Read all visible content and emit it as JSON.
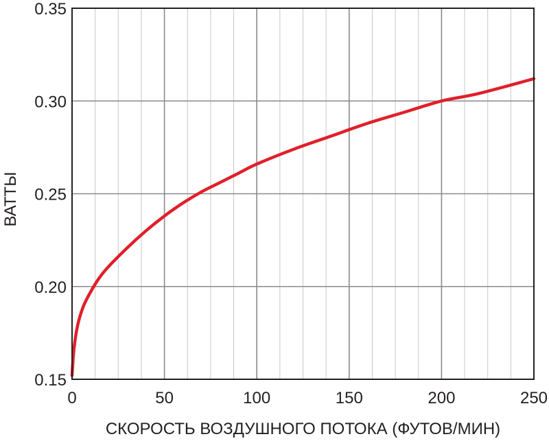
{
  "chart_data": {
    "type": "line",
    "title": "",
    "xlabel": "СКОРОСТЬ ВОЗДУШНОГО ПОТОКА (ФУТОВ/МИН)",
    "ylabel": "ВАТТЫ",
    "xlim": [
      0,
      250
    ],
    "ylim": [
      0.15,
      0.35
    ],
    "xticks": [
      0,
      50,
      100,
      150,
      200,
      250
    ],
    "xtick_labels": [
      "0",
      "50",
      "100",
      "150",
      "200",
      "250"
    ],
    "yticks": [
      0.15,
      0.2,
      0.25,
      0.3,
      0.35
    ],
    "ytick_labels": [
      "0.15",
      "0.20",
      "0.25",
      "0.30",
      "0.35"
    ],
    "x_minor_step": 12.5,
    "y_minor_step": 0.05,
    "grid": true,
    "line_color": "#e0202a",
    "series": [
      {
        "x": [
          0,
          1,
          3,
          6,
          10,
          15,
          20,
          30,
          40,
          50,
          60,
          70,
          80,
          90,
          100,
          120,
          140,
          160,
          180,
          200,
          220,
          250
        ],
        "y": [
          0.152,
          0.166,
          0.179,
          0.189,
          0.197,
          0.205,
          0.211,
          0.221,
          0.23,
          0.238,
          0.245,
          0.251,
          0.256,
          0.261,
          0.266,
          0.274,
          0.281,
          0.288,
          0.294,
          0.3,
          0.304,
          0.312
        ]
      }
    ]
  }
}
